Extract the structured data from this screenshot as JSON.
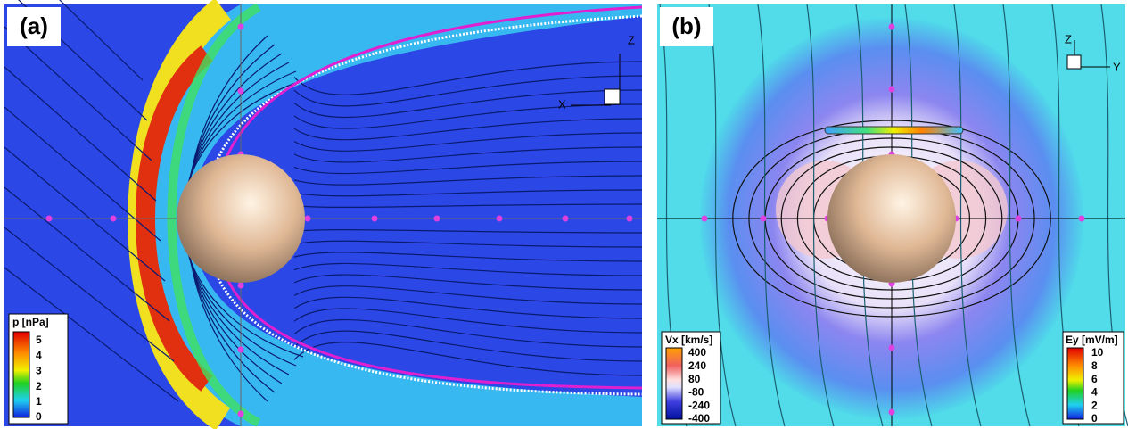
{
  "panels": [
    {
      "label": "(a)",
      "triad": [
        "X",
        "Z"
      ],
      "colorbars": [
        {
          "title": "p [nPa]",
          "ticks": [
            5,
            4,
            3,
            2,
            1,
            0
          ]
        }
      ]
    },
    {
      "label": "(b)",
      "triad": [
        "Z",
        "Y"
      ],
      "colorbars": [
        {
          "title": "Vx [km/s]",
          "ticks": [
            400,
            240,
            80,
            -80,
            -240,
            -400
          ]
        },
        {
          "title": "Ey [mV/m]",
          "ticks": [
            10,
            8,
            6,
            4,
            2,
            0
          ]
        }
      ]
    }
  ]
}
